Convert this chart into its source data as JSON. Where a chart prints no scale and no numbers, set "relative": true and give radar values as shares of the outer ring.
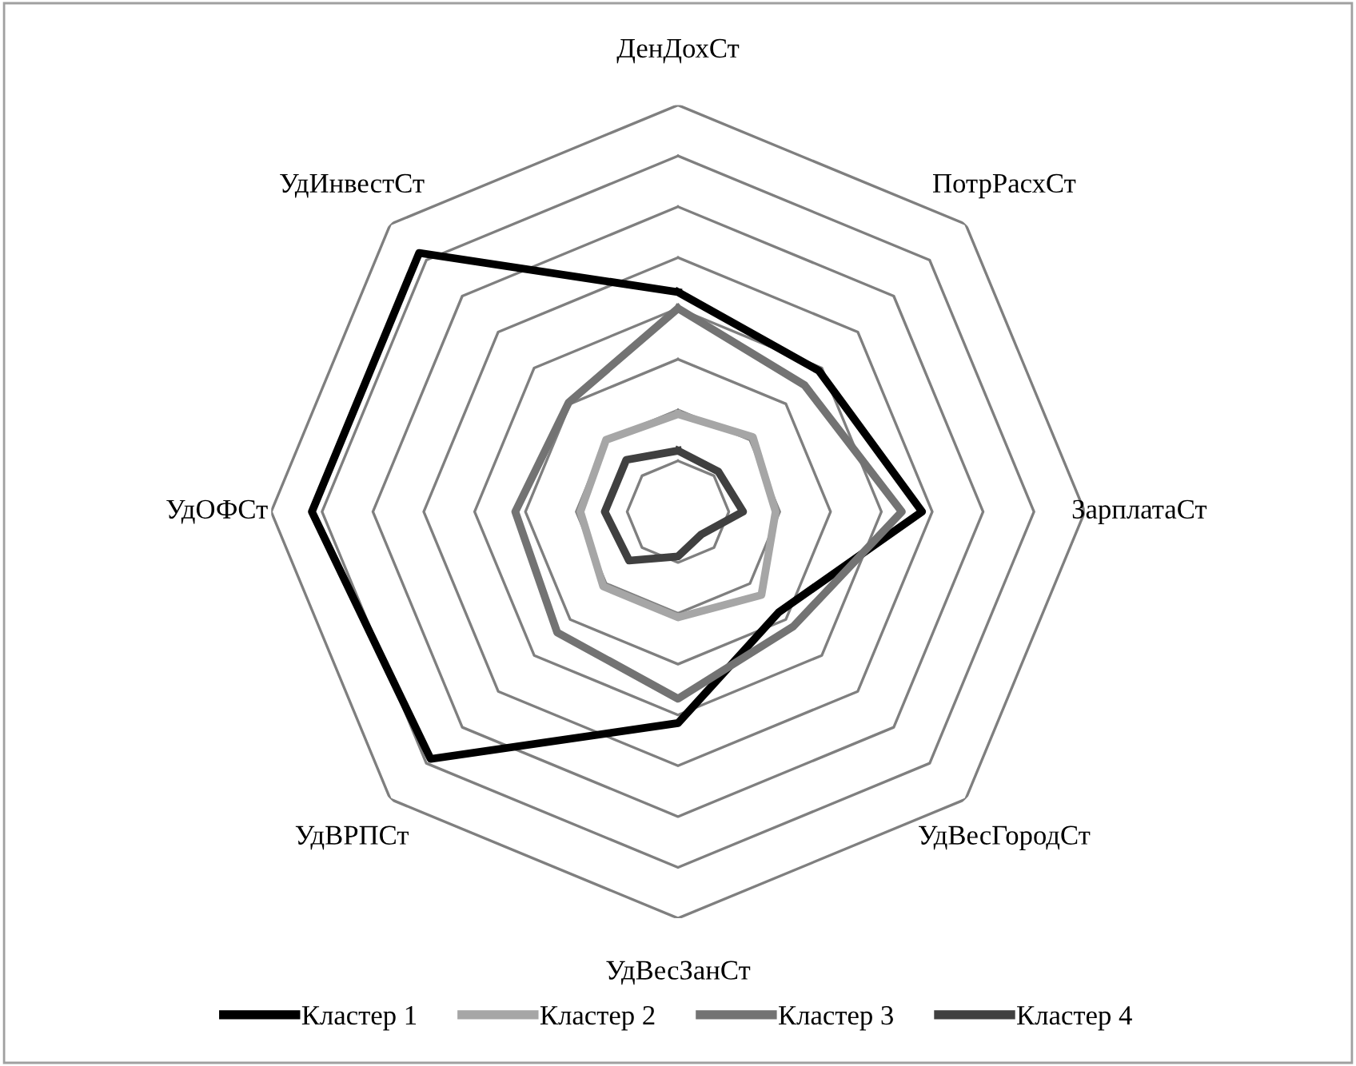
{
  "chart_data": {
    "type": "radar",
    "relative": true,
    "grid": true,
    "legend": "bottom",
    "categories": [
      "ДенДохСт",
      "ПотрРасхСт",
      "ЗарплатаСт",
      "УдВесГородСт",
      "УдВесЗанСт",
      "УдВРПСт",
      "УдОФСт",
      "УдИнвестСт"
    ],
    "series": [
      {
        "name": "Кластер 1",
        "color": "#000000",
        "values": [
          0.54,
          0.49,
          0.6,
          0.35,
          0.52,
          0.86,
          0.9,
          0.9
        ]
      },
      {
        "name": "Кластер 2",
        "color": "#a6a6a6",
        "values": [
          0.24,
          0.26,
          0.24,
          0.29,
          0.26,
          0.26,
          0.24,
          0.25
        ]
      },
      {
        "name": "Кластер 3",
        "color": "#737373",
        "values": [
          0.5,
          0.44,
          0.55,
          0.4,
          0.46,
          0.42,
          0.4,
          0.38
        ]
      },
      {
        "name": "Кластер 4",
        "color": "#404040",
        "values": [
          0.15,
          0.14,
          0.16,
          0.08,
          0.11,
          0.17,
          0.18,
          0.18
        ]
      }
    ]
  }
}
